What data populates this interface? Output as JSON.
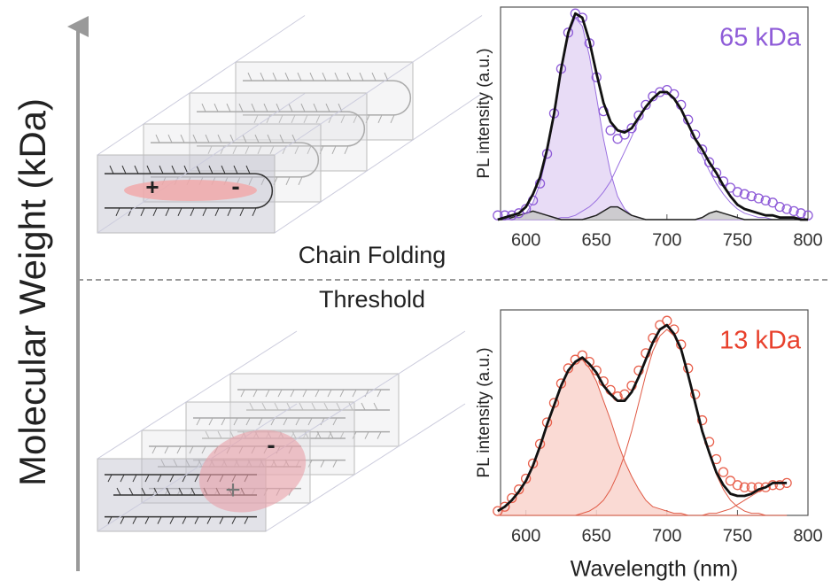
{
  "figure": {
    "y_axis_label": "Molecular Weight (kDa)",
    "upper_label": "Chain Folding",
    "lower_label": "Threshold",
    "upper_charges": [
      "+",
      "-"
    ],
    "lower_charges": [
      "-",
      "+"
    ]
  },
  "chart_data": [
    {
      "type": "line",
      "annotation": "65 kDa",
      "annotation_color": "#8e5bd8",
      "ylabel": "PL intensity (a.u.)",
      "x": [
        580,
        585,
        590,
        595,
        600,
        605,
        610,
        615,
        620,
        625,
        630,
        635,
        640,
        645,
        650,
        655,
        660,
        665,
        670,
        675,
        680,
        685,
        690,
        695,
        700,
        705,
        710,
        715,
        720,
        725,
        730,
        735,
        740,
        745,
        750,
        755,
        760,
        765,
        770,
        775,
        780,
        785,
        790,
        795,
        800
      ],
      "xlim": [
        582,
        800
      ],
      "xticks": [
        600,
        650,
        700,
        750,
        800
      ],
      "ylim": [
        0,
        1
      ],
      "series": [
        {
          "color": "#9a70e0",
          "fill": "#e4d6f5",
          "style": "line",
          "width": 1,
          "values": [
            0,
            0,
            0,
            0.01,
            0.03,
            0.08,
            0.17,
            0.31,
            0.49,
            0.7,
            0.87,
            0.95,
            0.91,
            0.77,
            0.58,
            0.38,
            0.22,
            0.11,
            0.05,
            0.02,
            0.01,
            0,
            0,
            0,
            0,
            0,
            0,
            0,
            0,
            0,
            0,
            0,
            0,
            0,
            0,
            0,
            0,
            0,
            0,
            0,
            0,
            0,
            0,
            0,
            0
          ]
        },
        {
          "color": "#9a70e0",
          "style": "line",
          "width": 1,
          "values": [
            0,
            0,
            0,
            0,
            0,
            0,
            0,
            0,
            0,
            0.01,
            0.01,
            0.02,
            0.04,
            0.06,
            0.09,
            0.13,
            0.18,
            0.25,
            0.32,
            0.39,
            0.47,
            0.53,
            0.57,
            0.6,
            0.6,
            0.57,
            0.52,
            0.45,
            0.38,
            0.3,
            0.23,
            0.17,
            0.12,
            0.08,
            0.05,
            0.03,
            0.02,
            0.01,
            0.01,
            0,
            0,
            0,
            0,
            0,
            0
          ]
        },
        {
          "color": "#222222",
          "fill": "#c8c8c8",
          "style": "line",
          "width": 1.5,
          "values": [
            0,
            0,
            0.01,
            0.02,
            0.03,
            0.04,
            0.03,
            0.02,
            0.01,
            0,
            0,
            0,
            0,
            0.01,
            0.02,
            0.04,
            0.06,
            0.06,
            0.04,
            0.02,
            0.01,
            0,
            0,
            0,
            0,
            0,
            0,
            0,
            0,
            0.01,
            0.03,
            0.04,
            0.03,
            0.02,
            0.01,
            0,
            0,
            0,
            0,
            0,
            0,
            0,
            0,
            0,
            0
          ]
        },
        {
          "color": "#8e5bd8",
          "style": "markers",
          "values": [
            0.02,
            0.02,
            0.02,
            0.03,
            0.05,
            0.09,
            0.17,
            0.31,
            0.5,
            0.71,
            0.88,
            0.97,
            0.95,
            0.83,
            0.67,
            0.51,
            0.42,
            0.38,
            0.4,
            0.43,
            0.49,
            0.54,
            0.58,
            0.6,
            0.61,
            0.59,
            0.54,
            0.47,
            0.4,
            0.33,
            0.27,
            0.22,
            0.18,
            0.15,
            0.13,
            0.12,
            0.11,
            0.1,
            0.09,
            0.08,
            0.06,
            0.05,
            0.04,
            0.03,
            0.02
          ]
        },
        {
          "color": "#111111",
          "style": "line",
          "width": 2.8,
          "values": [
            0,
            0.01,
            0.02,
            0.03,
            0.06,
            0.12,
            0.2,
            0.33,
            0.5,
            0.71,
            0.88,
            0.97,
            0.95,
            0.84,
            0.69,
            0.55,
            0.46,
            0.42,
            0.41,
            0.43,
            0.48,
            0.53,
            0.57,
            0.6,
            0.6,
            0.57,
            0.52,
            0.45,
            0.38,
            0.33,
            0.27,
            0.22,
            0.16,
            0.11,
            0.07,
            0.05,
            0.04,
            0.03,
            0.02,
            0.02,
            0.01,
            0.01,
            0.01,
            0,
            0
          ]
        }
      ]
    },
    {
      "type": "line",
      "annotation": "13 kDa",
      "annotation_color": "#e8402c",
      "ylabel": "PL intensity (a.u.)",
      "xlabel": "Wavelength (nm)",
      "x": [
        580,
        585,
        590,
        595,
        600,
        605,
        610,
        615,
        620,
        625,
        630,
        635,
        640,
        645,
        650,
        655,
        660,
        665,
        670,
        675,
        680,
        685,
        690,
        695,
        700,
        705,
        710,
        715,
        720,
        725,
        730,
        735,
        740,
        745,
        750,
        755,
        760,
        765,
        770,
        775,
        780,
        785
      ],
      "xlim": [
        582,
        800
      ],
      "xticks": [
        600,
        650,
        700,
        750,
        800
      ],
      "ylim": [
        0,
        0.95
      ],
      "series": [
        {
          "color": "#e05a45",
          "fill": "#f9d3cc",
          "style": "line",
          "width": 1,
          "values": [
            0.02,
            0.04,
            0.07,
            0.11,
            0.16,
            0.23,
            0.32,
            0.42,
            0.51,
            0.6,
            0.67,
            0.71,
            0.72,
            0.68,
            0.62,
            0.53,
            0.44,
            0.34,
            0.25,
            0.18,
            0.12,
            0.07,
            0.04,
            0.03,
            0.02,
            0.01,
            0.01,
            0,
            0,
            0,
            0,
            0,
            0,
            0,
            0,
            0,
            0,
            0,
            0,
            0,
            0,
            0
          ]
        },
        {
          "color": "#e05a45",
          "style": "line",
          "width": 1,
          "values": [
            0,
            0,
            0,
            0,
            0,
            0,
            0,
            0,
            0,
            0,
            0,
            0,
            0.01,
            0.02,
            0.04,
            0.07,
            0.12,
            0.19,
            0.28,
            0.39,
            0.52,
            0.65,
            0.76,
            0.83,
            0.86,
            0.83,
            0.76,
            0.65,
            0.52,
            0.39,
            0.28,
            0.19,
            0.12,
            0.07,
            0.04,
            0.02,
            0.01,
            0.01,
            0,
            0,
            0,
            0
          ]
        },
        {
          "color": "#e05a45",
          "style": "line",
          "width": 1,
          "values": [
            0,
            0,
            0,
            0,
            0,
            0,
            0,
            0,
            0,
            0,
            0,
            0,
            0,
            0,
            0,
            0,
            0,
            0,
            0,
            0,
            0,
            0,
            0,
            0,
            0,
            0,
            0,
            0,
            0,
            0,
            0.01,
            0.01,
            0.02,
            0.03,
            0.05,
            0.07,
            0.09,
            0.11,
            0.13,
            0.15,
            0.15,
            0.15
          ]
        },
        {
          "color": "#e8604c",
          "style": "markers",
          "values": [
            0.02,
            0.04,
            0.08,
            0.12,
            0.17,
            0.24,
            0.33,
            0.43,
            0.52,
            0.61,
            0.68,
            0.72,
            0.74,
            0.71,
            0.67,
            0.62,
            0.58,
            0.55,
            0.56,
            0.6,
            0.67,
            0.75,
            0.82,
            0.88,
            0.9,
            0.86,
            0.79,
            0.68,
            0.56,
            0.44,
            0.34,
            0.26,
            0.2,
            0.16,
            0.14,
            0.13,
            0.13,
            0.13,
            0.13,
            0.14,
            0.14,
            0.15
          ]
        },
        {
          "color": "#111111",
          "style": "line",
          "width": 2.8,
          "values": [
            0.02,
            0.04,
            0.07,
            0.11,
            0.16,
            0.23,
            0.32,
            0.42,
            0.51,
            0.6,
            0.67,
            0.71,
            0.73,
            0.7,
            0.66,
            0.6,
            0.56,
            0.53,
            0.53,
            0.57,
            0.64,
            0.72,
            0.8,
            0.86,
            0.88,
            0.84,
            0.77,
            0.65,
            0.52,
            0.39,
            0.29,
            0.2,
            0.14,
            0.1,
            0.09,
            0.09,
            0.1,
            0.12,
            0.13,
            0.15,
            0.15,
            0.15
          ]
        }
      ]
    }
  ]
}
